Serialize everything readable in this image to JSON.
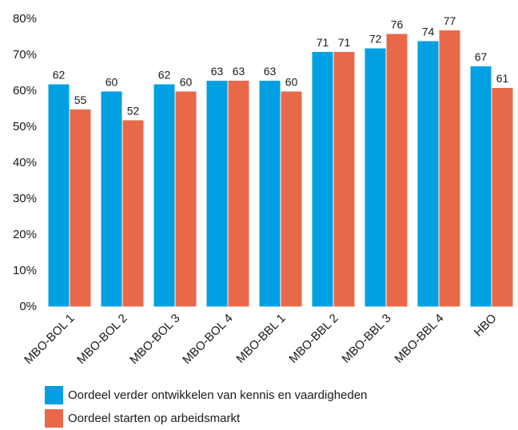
{
  "chart_data": {
    "type": "bar",
    "categories": [
      "MBO-BOL 1",
      "MBO-BOL 2",
      "MBO-BOL 3",
      "MBO-BOL 4",
      "MBO-BBL 1",
      "MBO-BBL 2",
      "MBO-BBL 3",
      "MBO-BBL 4",
      "HBO"
    ],
    "series": [
      {
        "name": "Oordeel verder ontwikkelen van kennis en vaardigheden",
        "color": "#00a0e3",
        "values": [
          62,
          60,
          62,
          63,
          63,
          71,
          72,
          74,
          67
        ]
      },
      {
        "name": "Oordeel starten op arbeidsmarkt",
        "color": "#e8694a",
        "values": [
          55,
          52,
          60,
          63,
          60,
          71,
          76,
          77,
          61
        ]
      }
    ],
    "ylim": [
      0,
      80
    ],
    "yticks": [
      {
        "value": 0,
        "label": "0%"
      },
      {
        "value": 10,
        "label": "10%"
      },
      {
        "value": 20,
        "label": "20%"
      },
      {
        "value": 30,
        "label": "30%"
      },
      {
        "value": 40,
        "label": "40%"
      },
      {
        "value": 50,
        "label": "50%"
      },
      {
        "value": 60,
        "label": "60%"
      },
      {
        "value": 70,
        "label": "70%"
      },
      {
        "value": 80,
        "label": "80%"
      }
    ],
    "grid": false,
    "legend": "bottom"
  }
}
